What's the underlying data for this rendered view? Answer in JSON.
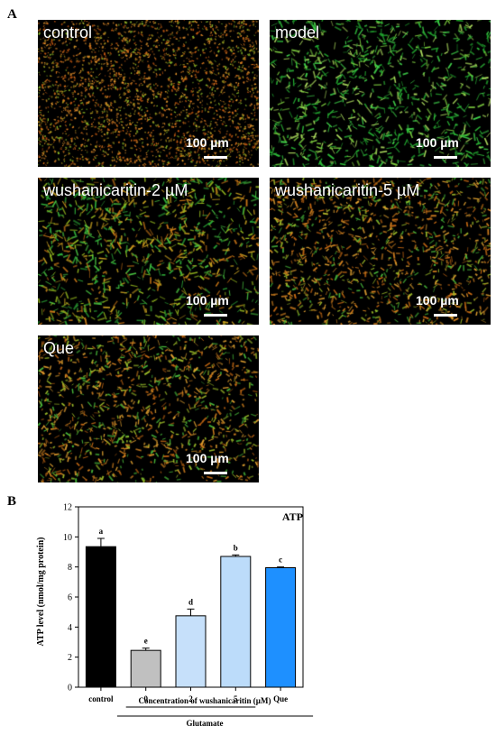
{
  "figure": {
    "panel_a_label": "A",
    "panel_b_label": "B",
    "images": [
      {
        "label": "control",
        "scale": "100 µm",
        "tone": "orange"
      },
      {
        "label": "model",
        "scale": "100 µm",
        "tone": "green"
      },
      {
        "label": "wushanicaritin-2 µM",
        "scale": "100 µm",
        "tone": "green-sparse"
      },
      {
        "label": "wushanicaritin-5 µM",
        "scale": "100 µm",
        "tone": "mixed"
      },
      {
        "label": "Que",
        "scale": "100 µm",
        "tone": "mixed"
      }
    ]
  },
  "chart_data": {
    "type": "bar",
    "title": "ATP",
    "ylabel": "ATP level (nmol/mg protein)",
    "ylim": [
      0,
      12
    ],
    "yticks": [
      0,
      2,
      4,
      6,
      8,
      10,
      12
    ],
    "categories": [
      "control",
      "0",
      "2",
      "5",
      "Que"
    ],
    "values": [
      9.35,
      2.45,
      4.75,
      8.7,
      7.95
    ],
    "errors": [
      0.55,
      0.15,
      0.45,
      0.1,
      0.05
    ],
    "letters": [
      "a",
      "e",
      "d",
      "b",
      "c"
    ],
    "colors": [
      "#000000",
      "#c0c0c0",
      "#c6e0fa",
      "#bcdcfa",
      "#1e90ff"
    ],
    "group_label_1": "Concentration of wushanicaritin (µM)",
    "group_label_2": "Glutamate"
  }
}
